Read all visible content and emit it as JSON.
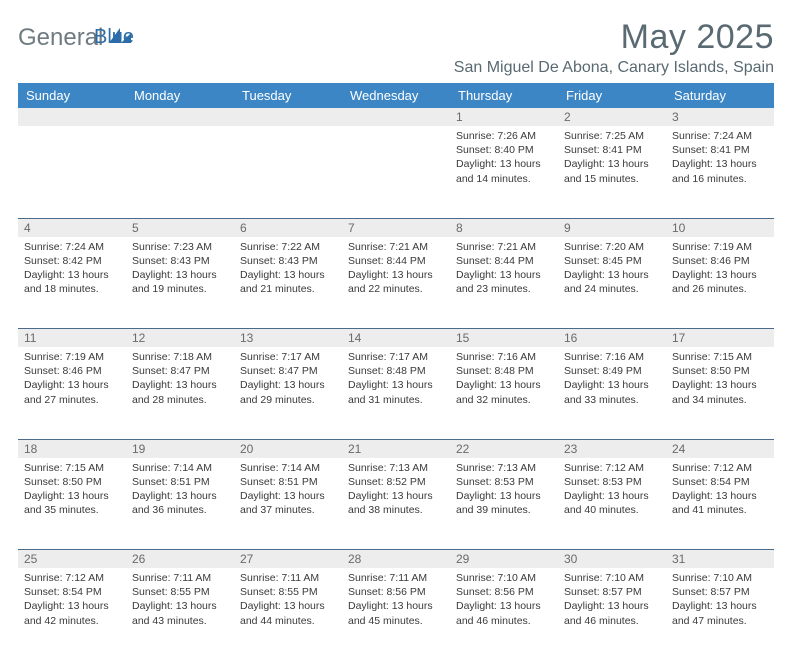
{
  "logo": {
    "general": "General",
    "blue": "Blue"
  },
  "title": "May 2025",
  "location": "San Miguel De Abona, Canary Islands, Spain",
  "colors": {
    "header_bg": "#3d86c6",
    "header_text": "#ffffff",
    "daynum_bg": "#ededed",
    "row_divider": "#4a6b8a",
    "body_text": "#3a3a3a",
    "title_text": "#5a6a72",
    "logo_gray": "#6f7b80",
    "logo_blue": "#2c6ca8"
  },
  "weekdays": [
    "Sunday",
    "Monday",
    "Tuesday",
    "Wednesday",
    "Thursday",
    "Friday",
    "Saturday"
  ],
  "weeks": [
    [
      {
        "n": "",
        "lines": []
      },
      {
        "n": "",
        "lines": []
      },
      {
        "n": "",
        "lines": []
      },
      {
        "n": "",
        "lines": []
      },
      {
        "n": "1",
        "lines": [
          "Sunrise: 7:26 AM",
          "Sunset: 8:40 PM",
          "Daylight: 13 hours and 14 minutes."
        ]
      },
      {
        "n": "2",
        "lines": [
          "Sunrise: 7:25 AM",
          "Sunset: 8:41 PM",
          "Daylight: 13 hours and 15 minutes."
        ]
      },
      {
        "n": "3",
        "lines": [
          "Sunrise: 7:24 AM",
          "Sunset: 8:41 PM",
          "Daylight: 13 hours and 16 minutes."
        ]
      }
    ],
    [
      {
        "n": "4",
        "lines": [
          "Sunrise: 7:24 AM",
          "Sunset: 8:42 PM",
          "Daylight: 13 hours and 18 minutes."
        ]
      },
      {
        "n": "5",
        "lines": [
          "Sunrise: 7:23 AM",
          "Sunset: 8:43 PM",
          "Daylight: 13 hours and 19 minutes."
        ]
      },
      {
        "n": "6",
        "lines": [
          "Sunrise: 7:22 AM",
          "Sunset: 8:43 PM",
          "Daylight: 13 hours and 21 minutes."
        ]
      },
      {
        "n": "7",
        "lines": [
          "Sunrise: 7:21 AM",
          "Sunset: 8:44 PM",
          "Daylight: 13 hours and 22 minutes."
        ]
      },
      {
        "n": "8",
        "lines": [
          "Sunrise: 7:21 AM",
          "Sunset: 8:44 PM",
          "Daylight: 13 hours and 23 minutes."
        ]
      },
      {
        "n": "9",
        "lines": [
          "Sunrise: 7:20 AM",
          "Sunset: 8:45 PM",
          "Daylight: 13 hours and 24 minutes."
        ]
      },
      {
        "n": "10",
        "lines": [
          "Sunrise: 7:19 AM",
          "Sunset: 8:46 PM",
          "Daylight: 13 hours and 26 minutes."
        ]
      }
    ],
    [
      {
        "n": "11",
        "lines": [
          "Sunrise: 7:19 AM",
          "Sunset: 8:46 PM",
          "Daylight: 13 hours and 27 minutes."
        ]
      },
      {
        "n": "12",
        "lines": [
          "Sunrise: 7:18 AM",
          "Sunset: 8:47 PM",
          "Daylight: 13 hours and 28 minutes."
        ]
      },
      {
        "n": "13",
        "lines": [
          "Sunrise: 7:17 AM",
          "Sunset: 8:47 PM",
          "Daylight: 13 hours and 29 minutes."
        ]
      },
      {
        "n": "14",
        "lines": [
          "Sunrise: 7:17 AM",
          "Sunset: 8:48 PM",
          "Daylight: 13 hours and 31 minutes."
        ]
      },
      {
        "n": "15",
        "lines": [
          "Sunrise: 7:16 AM",
          "Sunset: 8:48 PM",
          "Daylight: 13 hours and 32 minutes."
        ]
      },
      {
        "n": "16",
        "lines": [
          "Sunrise: 7:16 AM",
          "Sunset: 8:49 PM",
          "Daylight: 13 hours and 33 minutes."
        ]
      },
      {
        "n": "17",
        "lines": [
          "Sunrise: 7:15 AM",
          "Sunset: 8:50 PM",
          "Daylight: 13 hours and 34 minutes."
        ]
      }
    ],
    [
      {
        "n": "18",
        "lines": [
          "Sunrise: 7:15 AM",
          "Sunset: 8:50 PM",
          "Daylight: 13 hours and 35 minutes."
        ]
      },
      {
        "n": "19",
        "lines": [
          "Sunrise: 7:14 AM",
          "Sunset: 8:51 PM",
          "Daylight: 13 hours and 36 minutes."
        ]
      },
      {
        "n": "20",
        "lines": [
          "Sunrise: 7:14 AM",
          "Sunset: 8:51 PM",
          "Daylight: 13 hours and 37 minutes."
        ]
      },
      {
        "n": "21",
        "lines": [
          "Sunrise: 7:13 AM",
          "Sunset: 8:52 PM",
          "Daylight: 13 hours and 38 minutes."
        ]
      },
      {
        "n": "22",
        "lines": [
          "Sunrise: 7:13 AM",
          "Sunset: 8:53 PM",
          "Daylight: 13 hours and 39 minutes."
        ]
      },
      {
        "n": "23",
        "lines": [
          "Sunrise: 7:12 AM",
          "Sunset: 8:53 PM",
          "Daylight: 13 hours and 40 minutes."
        ]
      },
      {
        "n": "24",
        "lines": [
          "Sunrise: 7:12 AM",
          "Sunset: 8:54 PM",
          "Daylight: 13 hours and 41 minutes."
        ]
      }
    ],
    [
      {
        "n": "25",
        "lines": [
          "Sunrise: 7:12 AM",
          "Sunset: 8:54 PM",
          "Daylight: 13 hours and 42 minutes."
        ]
      },
      {
        "n": "26",
        "lines": [
          "Sunrise: 7:11 AM",
          "Sunset: 8:55 PM",
          "Daylight: 13 hours and 43 minutes."
        ]
      },
      {
        "n": "27",
        "lines": [
          "Sunrise: 7:11 AM",
          "Sunset: 8:55 PM",
          "Daylight: 13 hours and 44 minutes."
        ]
      },
      {
        "n": "28",
        "lines": [
          "Sunrise: 7:11 AM",
          "Sunset: 8:56 PM",
          "Daylight: 13 hours and 45 minutes."
        ]
      },
      {
        "n": "29",
        "lines": [
          "Sunrise: 7:10 AM",
          "Sunset: 8:56 PM",
          "Daylight: 13 hours and 46 minutes."
        ]
      },
      {
        "n": "30",
        "lines": [
          "Sunrise: 7:10 AM",
          "Sunset: 8:57 PM",
          "Daylight: 13 hours and 46 minutes."
        ]
      },
      {
        "n": "31",
        "lines": [
          "Sunrise: 7:10 AM",
          "Sunset: 8:57 PM",
          "Daylight: 13 hours and 47 minutes."
        ]
      }
    ]
  ]
}
